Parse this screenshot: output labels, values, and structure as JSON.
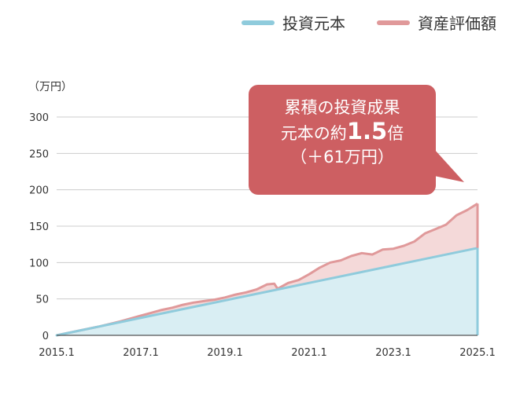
{
  "legend": {
    "items": [
      {
        "label": "投資元本",
        "color": "#8fcbdc"
      },
      {
        "label": "資産評価額",
        "color": "#e0999a"
      }
    ]
  },
  "callout": {
    "line1": "累積の投資成果",
    "line2_pre": "元本の約",
    "line2_num": "1.5",
    "line2_post": "倍",
    "line3": "（＋61万円）",
    "color": "#cd5f62"
  },
  "chart_data": {
    "type": "area",
    "y_unit_label": "（万円）",
    "ylim": [
      0,
      300
    ],
    "y_ticks": [
      "0",
      "50",
      "100",
      "150",
      "200",
      "250",
      "300"
    ],
    "xlim": [
      2015.0,
      2025.0
    ],
    "x_ticks": [
      "2015.1",
      "2017.1",
      "2019.1",
      "2021.1",
      "2023.1",
      "2025.1"
    ],
    "grid": true,
    "legend_position": "top-right",
    "colors": {
      "principal_line": "#8fcbdc",
      "principal_fill": "#d9eef3",
      "value_line": "#e0999a",
      "value_fill": "#f4d9d9",
      "grid": "#cccccc",
      "axis": "#555555"
    },
    "series": [
      {
        "name": "投資元本",
        "x": [
          2015.0,
          2025.0
        ],
        "values": [
          0,
          120
        ]
      },
      {
        "name": "資産評価額",
        "x": [
          2015.0,
          2015.5,
          2016.0,
          2016.5,
          2017.0,
          2017.25,
          2017.5,
          2017.75,
          2018.0,
          2018.25,
          2018.5,
          2018.75,
          2019.0,
          2019.25,
          2019.5,
          2019.75,
          2020.0,
          2020.17,
          2020.25,
          2020.5,
          2020.75,
          2021.0,
          2021.25,
          2021.5,
          2021.75,
          2022.0,
          2022.25,
          2022.5,
          2022.75,
          2023.0,
          2023.25,
          2023.5,
          2023.75,
          2024.0,
          2024.25,
          2024.5,
          2024.75,
          2025.0
        ],
        "values": [
          0,
          6,
          12,
          19,
          27,
          31,
          35,
          38,
          42,
          45,
          47,
          49,
          52,
          56,
          59,
          63,
          70,
          71,
          64,
          72,
          76,
          84,
          93,
          100,
          103,
          109,
          113,
          111,
          118,
          119,
          123,
          129,
          140,
          146,
          152,
          165,
          172,
          181
        ]
      }
    ]
  }
}
